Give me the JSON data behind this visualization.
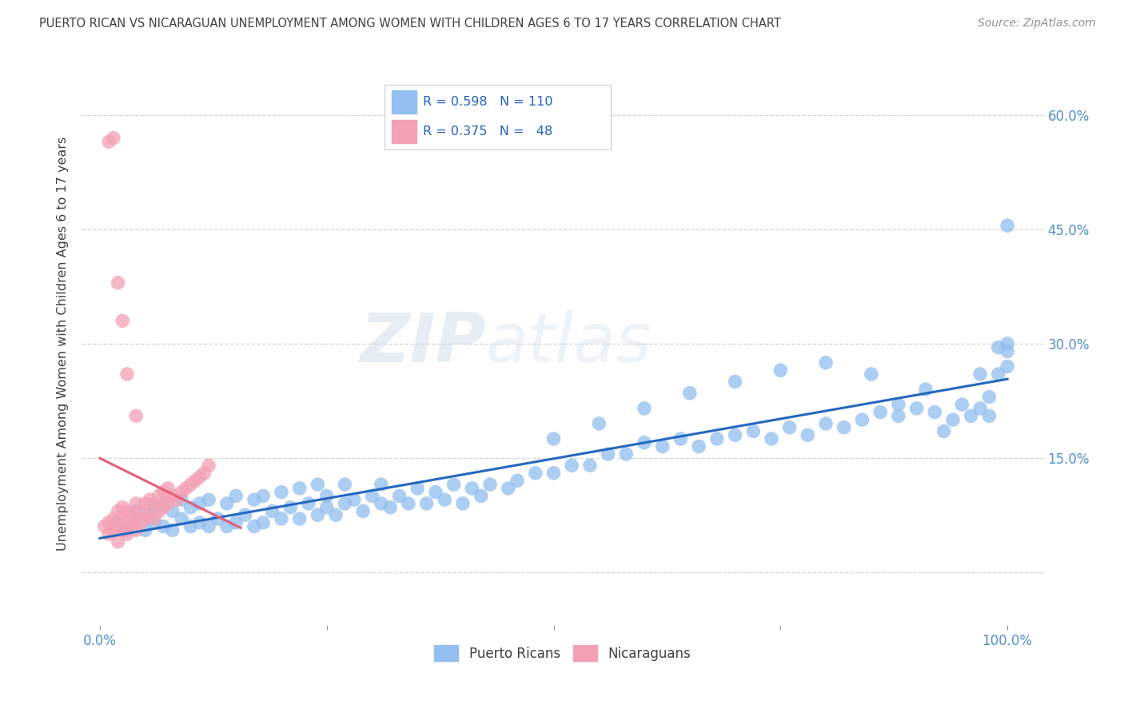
{
  "title": "PUERTO RICAN VS NICARAGUAN UNEMPLOYMENT AMONG WOMEN WITH CHILDREN AGES 6 TO 17 YEARS CORRELATION CHART",
  "source": "Source: ZipAtlas.com",
  "ylabel": "Unemployment Among Women with Children Ages 6 to 17 years",
  "xlim": [
    -0.02,
    1.04
  ],
  "ylim": [
    -0.07,
    0.67
  ],
  "xticks": [
    0.0,
    1.0
  ],
  "xticklabels": [
    "0.0%",
    "100.0%"
  ],
  "ytick_right_vals": [
    0.0,
    0.15,
    0.3,
    0.45,
    0.6
  ],
  "ytick_right_labels": [
    "",
    "15.0%",
    "30.0%",
    "45.0%",
    "60.0%"
  ],
  "blue_R": 0.598,
  "blue_N": 110,
  "pink_R": 0.375,
  "pink_N": 48,
  "blue_color": "#92BEF0",
  "pink_color": "#F4A0B4",
  "blue_line_color": "#2468C0",
  "pink_line_color": "#E0607A",
  "legend_labels": [
    "Puerto Ricans",
    "Nicaraguans"
  ],
  "watermark_zip": "ZIP",
  "watermark_atlas": "atlas",
  "background_color": "#ffffff",
  "title_color": "#404040",
  "source_color": "#909090",
  "axis_label_color": "#404040",
  "tick_color": "#5090D0",
  "grid_color": "#cccccc",
  "legend_text_color": "#2060C0",
  "blue_x": [
    0.02,
    0.03,
    0.04,
    0.04,
    0.05,
    0.05,
    0.06,
    0.06,
    0.07,
    0.07,
    0.08,
    0.08,
    0.09,
    0.09,
    0.1,
    0.1,
    0.11,
    0.11,
    0.12,
    0.12,
    0.13,
    0.14,
    0.14,
    0.15,
    0.15,
    0.16,
    0.17,
    0.17,
    0.18,
    0.18,
    0.19,
    0.2,
    0.2,
    0.21,
    0.22,
    0.22,
    0.23,
    0.24,
    0.24,
    0.25,
    0.25,
    0.26,
    0.27,
    0.27,
    0.28,
    0.29,
    0.3,
    0.31,
    0.31,
    0.32,
    0.33,
    0.34,
    0.35,
    0.36,
    0.37,
    0.38,
    0.39,
    0.4,
    0.41,
    0.42,
    0.43,
    0.45,
    0.46,
    0.48,
    0.5,
    0.52,
    0.54,
    0.56,
    0.58,
    0.6,
    0.62,
    0.64,
    0.66,
    0.68,
    0.7,
    0.72,
    0.74,
    0.76,
    0.78,
    0.8,
    0.82,
    0.84,
    0.86,
    0.88,
    0.9,
    0.92,
    0.93,
    0.95,
    0.96,
    0.97,
    0.98,
    0.98,
    0.99,
    0.99,
    1.0,
    1.0,
    1.0,
    1.0,
    0.5,
    0.55,
    0.6,
    0.65,
    0.7,
    0.75,
    0.8,
    0.85,
    0.88,
    0.91,
    0.94,
    0.97
  ],
  "blue_y": [
    0.065,
    0.055,
    0.07,
    0.08,
    0.055,
    0.075,
    0.065,
    0.085,
    0.06,
    0.09,
    0.055,
    0.08,
    0.07,
    0.095,
    0.06,
    0.085,
    0.065,
    0.09,
    0.06,
    0.095,
    0.07,
    0.06,
    0.09,
    0.065,
    0.1,
    0.075,
    0.06,
    0.095,
    0.065,
    0.1,
    0.08,
    0.07,
    0.105,
    0.085,
    0.07,
    0.11,
    0.09,
    0.075,
    0.115,
    0.085,
    0.1,
    0.075,
    0.115,
    0.09,
    0.095,
    0.08,
    0.1,
    0.09,
    0.115,
    0.085,
    0.1,
    0.09,
    0.11,
    0.09,
    0.105,
    0.095,
    0.115,
    0.09,
    0.11,
    0.1,
    0.115,
    0.11,
    0.12,
    0.13,
    0.13,
    0.14,
    0.14,
    0.155,
    0.155,
    0.17,
    0.165,
    0.175,
    0.165,
    0.175,
    0.18,
    0.185,
    0.175,
    0.19,
    0.18,
    0.195,
    0.19,
    0.2,
    0.21,
    0.205,
    0.215,
    0.21,
    0.185,
    0.22,
    0.205,
    0.215,
    0.23,
    0.205,
    0.295,
    0.26,
    0.3,
    0.27,
    0.455,
    0.29,
    0.175,
    0.195,
    0.215,
    0.235,
    0.25,
    0.265,
    0.275,
    0.26,
    0.22,
    0.24,
    0.2,
    0.26
  ],
  "pink_x": [
    0.005,
    0.01,
    0.01,
    0.015,
    0.015,
    0.02,
    0.02,
    0.02,
    0.025,
    0.025,
    0.025,
    0.03,
    0.03,
    0.03,
    0.035,
    0.035,
    0.04,
    0.04,
    0.04,
    0.045,
    0.045,
    0.05,
    0.05,
    0.055,
    0.055,
    0.06,
    0.06,
    0.065,
    0.065,
    0.07,
    0.07,
    0.075,
    0.075,
    0.08,
    0.085,
    0.09,
    0.095,
    0.1,
    0.105,
    0.11,
    0.115,
    0.12,
    0.01,
    0.015,
    0.02,
    0.025,
    0.03,
    0.04
  ],
  "pink_y": [
    0.06,
    0.05,
    0.065,
    0.055,
    0.07,
    0.04,
    0.06,
    0.08,
    0.055,
    0.07,
    0.085,
    0.05,
    0.065,
    0.08,
    0.06,
    0.075,
    0.055,
    0.07,
    0.09,
    0.065,
    0.08,
    0.07,
    0.09,
    0.075,
    0.095,
    0.07,
    0.09,
    0.08,
    0.1,
    0.085,
    0.105,
    0.09,
    0.11,
    0.1,
    0.095,
    0.105,
    0.11,
    0.115,
    0.12,
    0.125,
    0.13,
    0.14,
    0.565,
    0.57,
    0.38,
    0.33,
    0.26,
    0.205
  ]
}
